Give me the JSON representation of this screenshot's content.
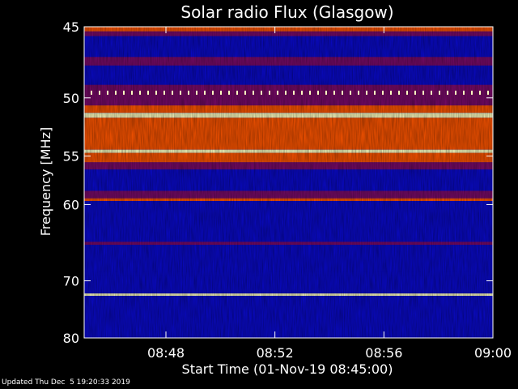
{
  "chart_data": {
    "type": "heatmap",
    "title": "Solar radio Flux (Glasgow)",
    "xlabel": "Start Time (01-Nov-19 08:45:00)",
    "ylabel": "Frequency [MHz]",
    "x_ticks": [
      {
        "minute": 3,
        "label": "08:48"
      },
      {
        "minute": 7,
        "label": "08:52"
      },
      {
        "minute": 11,
        "label": "08:56"
      },
      {
        "minute": 15,
        "label": "09:00"
      }
    ],
    "xlim": [
      0,
      15
    ],
    "y_ticks": [
      45,
      50,
      55,
      60,
      70,
      80
    ],
    "ylim": [
      45,
      80
    ],
    "y_scale": "reciprocal",
    "colors": {
      "low": "#0a0acc",
      "mid": "#7a0a6a",
      "high": "#ff5500",
      "peak": "#ffffc0"
    },
    "bands": [
      {
        "f": [
          45.0,
          45.3
        ],
        "level": "high"
      },
      {
        "f": [
          45.3,
          45.6
        ],
        "level": "mid"
      },
      {
        "f": [
          45.6,
          47.0
        ],
        "level": "low"
      },
      {
        "f": [
          47.0,
          47.6
        ],
        "level": "mid"
      },
      {
        "f": [
          47.6,
          49.0
        ],
        "level": "low"
      },
      {
        "f": [
          49.0,
          50.6
        ],
        "level": "mid"
      },
      {
        "f": [
          50.6,
          51.2
        ],
        "level": "high"
      },
      {
        "f": [
          51.2,
          51.6
        ],
        "level": "peak"
      },
      {
        "f": [
          51.6,
          54.4
        ],
        "level": "high"
      },
      {
        "f": [
          54.4,
          54.7
        ],
        "level": "peak"
      },
      {
        "f": [
          54.7,
          55.6
        ],
        "level": "high"
      },
      {
        "f": [
          55.6,
          56.3
        ],
        "level": "mid"
      },
      {
        "f": [
          56.3,
          58.5
        ],
        "level": "low"
      },
      {
        "f": [
          58.5,
          59.3
        ],
        "level": "mid"
      },
      {
        "f": [
          59.3,
          59.6
        ],
        "level": "high"
      },
      {
        "f": [
          59.6,
          64.5
        ],
        "level": "low"
      },
      {
        "f": [
          64.5,
          64.9
        ],
        "level": "mid"
      },
      {
        "f": [
          64.9,
          68.5
        ],
        "level": "low"
      },
      {
        "f": [
          68.5,
          69.2
        ],
        "level": "low"
      },
      {
        "f": [
          69.2,
          72.0
        ],
        "level": "low"
      },
      {
        "f": [
          72.0,
          72.4
        ],
        "level": "peak"
      },
      {
        "f": [
          72.4,
          80.0
        ],
        "level": "low"
      }
    ],
    "dotted_line_f": 49.6
  },
  "footer": "Updated Thu Dec  5 19:20:33 2019"
}
